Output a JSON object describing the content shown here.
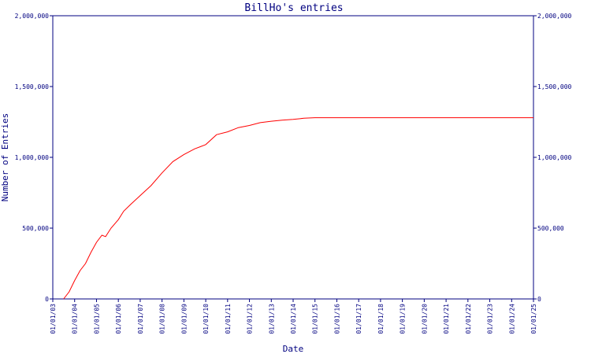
{
  "chart_data": {
    "type": "line",
    "title": "BillHo's entries",
    "xlabel": "Date",
    "ylabel": "Number of Entries",
    "ylim": [
      0,
      2000000
    ],
    "y_ticks": [
      {
        "value": 0,
        "label": "0"
      },
      {
        "value": 500000,
        "label": "500,000"
      },
      {
        "value": 1000000,
        "label": "1,000,000"
      },
      {
        "value": 1500000,
        "label": "1,500,000"
      },
      {
        "value": 2000000,
        "label": "2,000,000"
      }
    ],
    "y_ticks_right": [
      {
        "value": 0,
        "label": "0"
      },
      {
        "value": 500000,
        "label": "500,000"
      },
      {
        "value": 1000000,
        "label": "1,000,000"
      },
      {
        "value": 1500000,
        "label": "1,500,000"
      },
      {
        "value": 2000000,
        "label": "2,000,000"
      }
    ],
    "x_ticks": [
      "01/01/03",
      "01/01/04",
      "01/01/05",
      "01/01/06",
      "01/01/07",
      "01/01/08",
      "01/01/09",
      "01/01/10",
      "01/01/11",
      "01/01/12",
      "01/01/13",
      "01/01/14",
      "01/01/15",
      "01/01/16",
      "01/01/17",
      "01/01/18",
      "01/01/19",
      "01/01/20",
      "01/01/21",
      "01/01/22",
      "01/01/23",
      "01/01/24",
      "01/01/25"
    ],
    "xlim": [
      "2003-01-01",
      "2025-01-01"
    ],
    "grid": false,
    "series": [
      {
        "color": "#ff0000",
        "points": [
          [
            "2003-07-01",
            0
          ],
          [
            "2003-10-01",
            50000
          ],
          [
            "2004-01-01",
            130000
          ],
          [
            "2004-04-01",
            200000
          ],
          [
            "2004-07-01",
            250000
          ],
          [
            "2004-10-01",
            330000
          ],
          [
            "2005-01-01",
            400000
          ],
          [
            "2005-04-01",
            450000
          ],
          [
            "2005-06-01",
            440000
          ],
          [
            "2005-09-01",
            500000
          ],
          [
            "2006-01-01",
            560000
          ],
          [
            "2006-04-01",
            620000
          ],
          [
            "2006-08-01",
            670000
          ],
          [
            "2007-01-01",
            730000
          ],
          [
            "2007-07-01",
            800000
          ],
          [
            "2008-01-01",
            890000
          ],
          [
            "2008-07-01",
            970000
          ],
          [
            "2009-01-01",
            1020000
          ],
          [
            "2009-07-01",
            1060000
          ],
          [
            "2010-01-01",
            1090000
          ],
          [
            "2010-07-01",
            1160000
          ],
          [
            "2011-01-01",
            1180000
          ],
          [
            "2011-07-01",
            1210000
          ],
          [
            "2012-01-01",
            1225000
          ],
          [
            "2012-07-01",
            1245000
          ],
          [
            "2013-01-01",
            1255000
          ],
          [
            "2013-07-01",
            1262000
          ],
          [
            "2014-01-01",
            1268000
          ],
          [
            "2014-07-01",
            1276000
          ],
          [
            "2015-01-01",
            1280000
          ],
          [
            "2017-01-01",
            1280000
          ],
          [
            "2020-01-01",
            1280000
          ],
          [
            "2023-01-01",
            1280000
          ],
          [
            "2024-12-31",
            1280000
          ]
        ]
      }
    ]
  }
}
